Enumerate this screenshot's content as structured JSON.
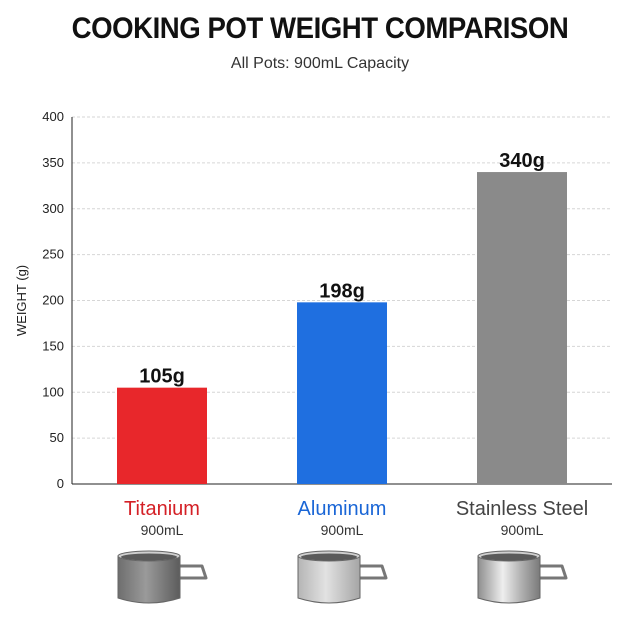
{
  "chart_data": {
    "type": "bar",
    "title": "COOKING POT WEIGHT COMPARISON",
    "subtitle": "All Pots: 900mL Capacity",
    "ylabel": "WEIGHT (g)",
    "xlabel": "",
    "ylim": [
      0,
      400
    ],
    "yticks": [
      0,
      50,
      100,
      150,
      200,
      250,
      300,
      350,
      400
    ],
    "grid": true,
    "categories": [
      "Titanium",
      "Aluminum",
      "Stainless Steel"
    ],
    "capacities": [
      "900mL",
      "900mL",
      "900mL"
    ],
    "values": [
      105,
      198,
      340
    ],
    "data_labels": [
      "105g",
      "198g",
      "340g"
    ],
    "colors": [
      "#e8272b",
      "#1f6fe0",
      "#8a8a8a"
    ],
    "label_colors": [
      "#d42026",
      "#1a66d6",
      "#444444"
    ],
    "icons": [
      "titanium-pot-icon",
      "aluminum-pot-icon",
      "stainless-steel-pot-icon"
    ]
  }
}
